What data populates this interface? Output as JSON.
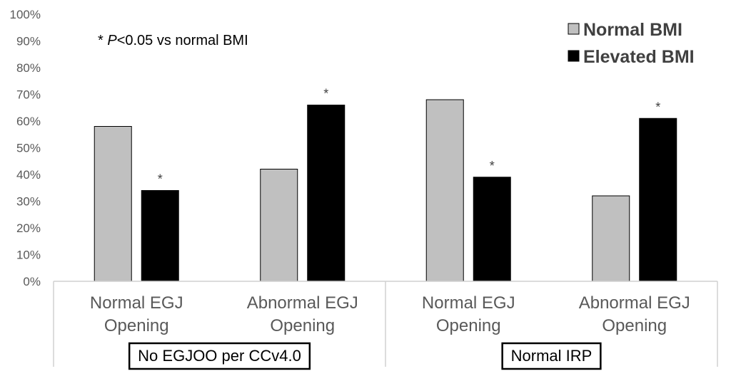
{
  "chart_data": {
    "type": "bar",
    "title": "",
    "xlabel": "",
    "ylabel": "",
    "ylim": [
      0,
      100
    ],
    "y_ticks": [
      "0%",
      "10%",
      "20%",
      "30%",
      "40%",
      "50%",
      "60%",
      "70%",
      "80%",
      "90%",
      "100%"
    ],
    "categories": [
      {
        "line1": "Normal EGJ",
        "line2": "Opening"
      },
      {
        "line1": "Abnormal EGJ",
        "line2": "Opening"
      },
      {
        "line1": "Normal EGJ",
        "line2": "Opening"
      },
      {
        "line1": "Abnormal EGJ",
        "line2": "Opening"
      }
    ],
    "groups": [
      {
        "label": "No EGJOO per CCv4.0"
      },
      {
        "label": "Normal IRP"
      }
    ],
    "series": [
      {
        "name": "Normal BMI",
        "color": "#c0c0c0",
        "values": [
          58,
          42,
          68,
          32
        ]
      },
      {
        "name": "Elevated BMI",
        "color": "#000000",
        "values": [
          34,
          66,
          39,
          61
        ]
      }
    ],
    "significance": {
      "marker": "*",
      "series": "Elevated BMI",
      "flags": [
        true,
        true,
        true,
        true
      ]
    },
    "annotation": {
      "star": "* ",
      "p": "P",
      "rest": "<0.05 vs normal BMI"
    },
    "legend_position": "top-right"
  }
}
